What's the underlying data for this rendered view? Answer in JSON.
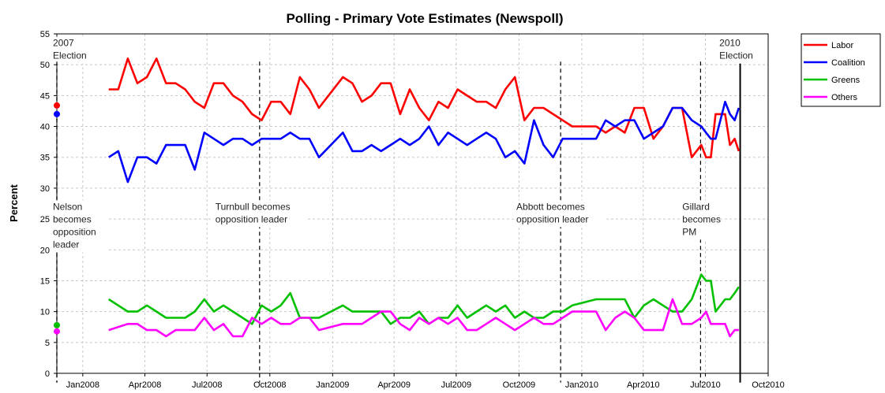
{
  "chart_data": {
    "type": "line",
    "title": "Polling - Primary Vote Estimates (Newspoll)",
    "ylabel": "Percent",
    "xlabel": "",
    "ylim": [
      0,
      55
    ],
    "yticks": [
      0,
      5,
      10,
      15,
      20,
      25,
      30,
      35,
      40,
      45,
      50,
      55
    ],
    "xlim": [
      "2007-11-24",
      "2010-10-01"
    ],
    "xticks": [
      "2008-01-01",
      "2008-04-01",
      "2008-07-01",
      "2008-10-01",
      "2009-01-01",
      "2009-04-01",
      "2009-07-01",
      "2009-10-01",
      "2010-01-01",
      "2010-04-01",
      "2010-07-01",
      "2010-10-01"
    ],
    "xtick_labels": [
      "Jan2008",
      "Apr2008",
      "Jul2008",
      "Oct2008",
      "Jan2009",
      "Apr2009",
      "Jul2009",
      "Oct2009",
      "Jan2010",
      "Apr2010",
      "Jul2010",
      "Oct2010"
    ],
    "grid": true,
    "legend_position": "top-right",
    "dates": [
      "2008-02-08",
      "2008-02-22",
      "2008-03-07",
      "2008-03-21",
      "2008-04-04",
      "2008-04-18",
      "2008-05-02",
      "2008-05-16",
      "2008-05-30",
      "2008-06-13",
      "2008-06-27",
      "2008-07-11",
      "2008-07-25",
      "2008-08-08",
      "2008-08-22",
      "2008-09-05",
      "2008-09-19",
      "2008-10-03",
      "2008-10-17",
      "2008-10-31",
      "2008-11-14",
      "2008-11-28",
      "2008-12-12",
      "2009-01-16",
      "2009-01-30",
      "2009-02-13",
      "2009-02-27",
      "2009-03-13",
      "2009-03-27",
      "2009-04-10",
      "2009-04-24",
      "2009-05-08",
      "2009-05-22",
      "2009-06-05",
      "2009-06-19",
      "2009-07-03",
      "2009-07-17",
      "2009-07-31",
      "2009-08-14",
      "2009-08-28",
      "2009-09-11",
      "2009-09-25",
      "2009-10-09",
      "2009-10-23",
      "2009-11-06",
      "2009-11-20",
      "2009-12-04",
      "2009-12-18",
      "2010-01-22",
      "2010-02-05",
      "2010-02-19",
      "2010-03-05",
      "2010-03-19",
      "2010-04-02",
      "2010-04-16",
      "2010-04-30",
      "2010-05-14",
      "2010-05-28",
      "2010-06-11",
      "2010-06-25",
      "2010-07-02",
      "2010-07-09",
      "2010-07-16",
      "2010-07-23",
      "2010-07-30",
      "2010-08-06",
      "2010-08-13",
      "2010-08-19"
    ],
    "series": [
      {
        "name": "Labor",
        "color": "#ff0000",
        "values": [
          46,
          46,
          51,
          47,
          48,
          51,
          47,
          47,
          46,
          44,
          43,
          47,
          47,
          45,
          44,
          42,
          41,
          44,
          44,
          42,
          48,
          46,
          43,
          48,
          47,
          44,
          45,
          47,
          47,
          42,
          46,
          43,
          41,
          44,
          43,
          46,
          45,
          44,
          44,
          43,
          46,
          48,
          41,
          43,
          43,
          42,
          41,
          40,
          40,
          39,
          40,
          39,
          43,
          43,
          38,
          40,
          43,
          43,
          35,
          37,
          35,
          35,
          42,
          42,
          42,
          37,
          38,
          36
        ]
      },
      {
        "name": "Coalition",
        "color": "#0000ff",
        "values": [
          35,
          36,
          31,
          35,
          35,
          34,
          37,
          37,
          37,
          33,
          39,
          38,
          37,
          38,
          38,
          37,
          38,
          38,
          38,
          39,
          38,
          38,
          35,
          39,
          36,
          36,
          37,
          36,
          37,
          38,
          37,
          38,
          40,
          37,
          39,
          38,
          37,
          38,
          39,
          38,
          35,
          36,
          34,
          41,
          37,
          35,
          38,
          38,
          38,
          41,
          40,
          41,
          41,
          38,
          39,
          40,
          43,
          43,
          41,
          40,
          39,
          38,
          38,
          41,
          44,
          42,
          41,
          43
        ]
      },
      {
        "name": "Greens",
        "color": "#00c000",
        "values": [
          12,
          11,
          10,
          10,
          11,
          10,
          9,
          9,
          9,
          10,
          12,
          10,
          11,
          10,
          9,
          8,
          11,
          10,
          11,
          13,
          9,
          9,
          9,
          11,
          10,
          10,
          10,
          10,
          8,
          9,
          9,
          10,
          8,
          9,
          9,
          11,
          9,
          10,
          11,
          10,
          11,
          9,
          10,
          9,
          9,
          10,
          10,
          11,
          12,
          12,
          12,
          12,
          9,
          11,
          12,
          11,
          10,
          10,
          12,
          16,
          15,
          15,
          10,
          11,
          12,
          12,
          13,
          14
        ]
      },
      {
        "name": "Others",
        "color": "#ff00ff",
        "values": [
          7,
          7.5,
          8,
          8,
          7,
          7,
          6,
          7,
          7,
          7,
          9,
          7,
          8,
          6,
          6,
          9,
          8,
          9,
          8,
          8,
          9,
          9,
          7,
          8,
          8,
          8,
          9,
          10,
          10,
          8,
          7,
          9,
          8,
          9,
          8,
          9,
          7,
          7,
          8,
          9,
          8,
          7,
          8,
          9,
          8,
          8,
          9,
          10,
          10,
          7,
          9,
          10,
          9,
          7,
          7,
          7,
          12,
          8,
          8,
          9,
          10,
          8,
          8,
          8,
          8,
          6,
          7,
          7
        ]
      }
    ],
    "election_2007_points": [
      {
        "series": "Labor",
        "date": "2007-11-24",
        "value": 43.4
      },
      {
        "series": "Coalition",
        "date": "2007-11-24",
        "value": 42
      },
      {
        "series": "Greens",
        "date": "2007-11-24",
        "value": 7.8
      },
      {
        "series": "Others",
        "date": "2007-11-24",
        "value": 6.8
      }
    ],
    "events": [
      {
        "date": "2007-11-24",
        "label_lines": [
          "2007",
          "Election"
        ],
        "label_y": 53
      },
      {
        "date": "2007-11-24",
        "label_lines": [
          "Nelson",
          "becomes",
          "opposition",
          "leader"
        ],
        "label_y": 26.5
      },
      {
        "date": "2008-09-16",
        "label_lines": [
          "Turnbull becomes",
          "opposition leader"
        ],
        "label_y": 26.5
      },
      {
        "date": "2009-12-01",
        "label_lines": [
          "Abbott becomes",
          "opposition leader"
        ],
        "label_y": 26.5
      },
      {
        "date": "2010-06-24",
        "label_lines": [
          "Gillard",
          "becomes",
          "PM"
        ],
        "label_y": 26.5
      },
      {
        "date": "2010-08-21",
        "label_lines": [
          "2010",
          "Election"
        ],
        "label_y": 53,
        "solid": true
      }
    ]
  }
}
